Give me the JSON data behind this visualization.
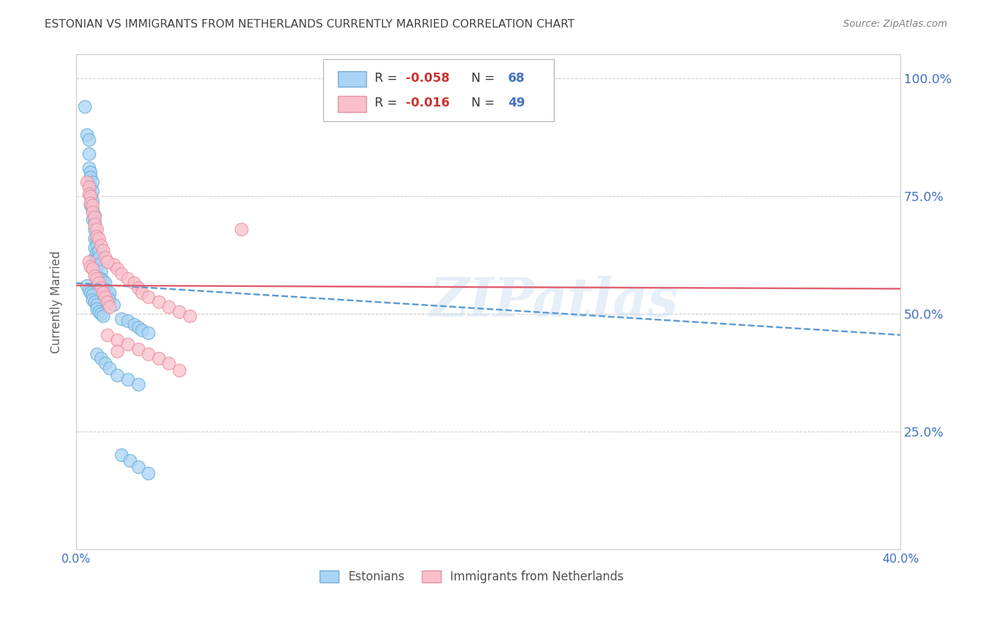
{
  "title": "ESTONIAN VS IMMIGRANTS FROM NETHERLANDS CURRENTLY MARRIED CORRELATION CHART",
  "source": "Source: ZipAtlas.com",
  "ylabel": "Currently Married",
  "y_tick_labels": [
    "100.0%",
    "75.0%",
    "50.0%",
    "25.0%"
  ],
  "y_tick_values": [
    1.0,
    0.75,
    0.5,
    0.25
  ],
  "xlim": [
    0.0,
    0.4
  ],
  "ylim": [
    0.0,
    1.05
  ],
  "legend_label1": "Estonians",
  "legend_label2": "Immigrants from Netherlands",
  "blue_color_face": "#aad4f5",
  "blue_color_edge": "#6baed6",
  "pink_color_face": "#f9c0cc",
  "pink_color_edge": "#e88fa0",
  "blue_trend_x": [
    0.0,
    0.4
  ],
  "blue_trend_y": [
    0.565,
    0.455
  ],
  "pink_trend_x": [
    0.0,
    0.4
  ],
  "pink_trend_y": [
    0.56,
    0.553
  ],
  "watermark": "ZIPatlas",
  "background_color": "#ffffff",
  "grid_color": "#cccccc",
  "tick_label_color": "#4472c4",
  "title_color": "#404040",
  "source_color": "#808080",
  "blue_x": [
    0.004,
    0.005,
    0.006,
    0.006,
    0.006,
    0.007,
    0.007,
    0.007,
    0.007,
    0.007,
    0.008,
    0.008,
    0.008,
    0.008,
    0.008,
    0.009,
    0.009,
    0.009,
    0.009,
    0.009,
    0.009,
    0.01,
    0.01,
    0.01,
    0.01,
    0.01,
    0.011,
    0.011,
    0.011,
    0.012,
    0.012,
    0.012,
    0.013,
    0.013,
    0.014,
    0.014,
    0.015,
    0.016,
    0.016,
    0.018,
    0.005,
    0.006,
    0.007,
    0.008,
    0.008,
    0.009,
    0.01,
    0.01,
    0.011,
    0.012,
    0.013,
    0.022,
    0.025,
    0.028,
    0.03,
    0.032,
    0.035,
    0.01,
    0.012,
    0.014,
    0.016,
    0.02,
    0.025,
    0.03,
    0.022,
    0.026,
    0.03,
    0.035
  ],
  "blue_y": [
    0.94,
    0.88,
    0.87,
    0.84,
    0.81,
    0.8,
    0.79,
    0.77,
    0.75,
    0.73,
    0.78,
    0.76,
    0.74,
    0.72,
    0.7,
    0.71,
    0.695,
    0.68,
    0.66,
    0.64,
    0.62,
    0.66,
    0.645,
    0.63,
    0.615,
    0.6,
    0.635,
    0.62,
    0.605,
    0.59,
    0.575,
    0.56,
    0.57,
    0.555,
    0.565,
    0.55,
    0.54,
    0.545,
    0.53,
    0.52,
    0.56,
    0.55,
    0.545,
    0.54,
    0.53,
    0.525,
    0.52,
    0.51,
    0.505,
    0.5,
    0.495,
    0.49,
    0.485,
    0.478,
    0.472,
    0.465,
    0.46,
    0.415,
    0.405,
    0.395,
    0.385,
    0.37,
    0.36,
    0.35,
    0.2,
    0.188,
    0.175,
    0.162
  ],
  "pink_x": [
    0.005,
    0.006,
    0.006,
    0.007,
    0.007,
    0.008,
    0.008,
    0.009,
    0.009,
    0.01,
    0.01,
    0.011,
    0.012,
    0.013,
    0.014,
    0.006,
    0.007,
    0.008,
    0.009,
    0.01,
    0.011,
    0.012,
    0.013,
    0.014,
    0.015,
    0.016,
    0.018,
    0.02,
    0.022,
    0.025,
    0.028,
    0.03,
    0.032,
    0.035,
    0.04,
    0.045,
    0.05,
    0.055,
    0.015,
    0.02,
    0.025,
    0.03,
    0.035,
    0.04,
    0.045,
    0.08,
    0.015,
    0.02,
    0.05
  ],
  "pink_y": [
    0.78,
    0.77,
    0.755,
    0.75,
    0.735,
    0.73,
    0.715,
    0.705,
    0.69,
    0.68,
    0.665,
    0.66,
    0.645,
    0.635,
    0.62,
    0.61,
    0.6,
    0.595,
    0.58,
    0.575,
    0.565,
    0.555,
    0.545,
    0.535,
    0.525,
    0.515,
    0.605,
    0.595,
    0.585,
    0.575,
    0.565,
    0.555,
    0.545,
    0.535,
    0.525,
    0.515,
    0.505,
    0.495,
    0.455,
    0.445,
    0.435,
    0.425,
    0.415,
    0.405,
    0.395,
    0.68,
    0.61,
    0.42,
    0.38
  ]
}
